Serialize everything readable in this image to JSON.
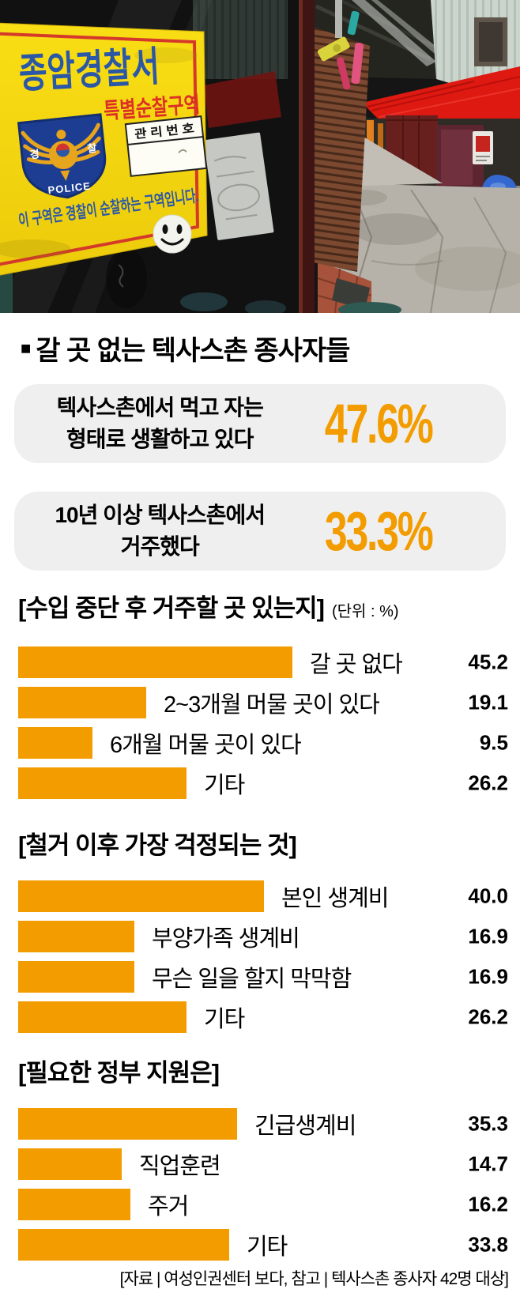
{
  "headline_bullet": "■",
  "headline": "갈 곳 없는 텍사스촌 종사자들",
  "stat_boxes": [
    {
      "line1": "텍사스촌에서 먹고 자는",
      "line2": "형태로 생활하고 있다",
      "value": "47.6%"
    },
    {
      "line1": "10년 이상 텍사스촌에서",
      "line2": "거주했다",
      "value": "33.3%"
    }
  ],
  "chart_data": [
    {
      "type": "bar",
      "orientation": "horizontal",
      "title": "[수입 중단 후 거주할 곳 있는지]",
      "unit_note": "(단위 : %)",
      "categories": [
        "갈 곳 없다",
        "2~3개월 머물 곳이 있다",
        "6개월 머물 곳이 있다",
        "기타"
      ],
      "values": [
        45.2,
        19.1,
        9.5,
        26.2
      ],
      "bar_color": "#f39c00",
      "value_position": "right-aligned column",
      "grid": false
    },
    {
      "type": "bar",
      "orientation": "horizontal",
      "title": "[철거 이후 가장 걱정되는 것]",
      "unit_note": "",
      "categories": [
        "본인 생계비",
        "부양가족 생계비",
        "무슨 일을 할지 막막함",
        "기타"
      ],
      "values": [
        40.0,
        16.9,
        16.9,
        26.2
      ],
      "bar_color": "#f39c00",
      "value_position": "right-aligned column",
      "grid": false
    },
    {
      "type": "bar",
      "orientation": "horizontal",
      "title": "[필요한 정부 지원은]",
      "unit_note": "",
      "categories": [
        "긴급생계비",
        "직업훈련",
        "주거",
        "기타"
      ],
      "values": [
        35.3,
        14.7,
        16.2,
        33.8
      ],
      "bar_color": "#f39c00",
      "value_position": "right-aligned column",
      "grid": false
    }
  ],
  "source": "[자료 | 여성인권센터 보다, 참고 | 텍사스촌 종사자 42명 대상]",
  "photo": {
    "sign": {
      "line1": "종암경찰서",
      "line2": "특별순찰구역",
      "box_title": "관 리 번 호",
      "emblem_left": "경",
      "emblem_right": "찰",
      "emblem_bottom": "POLICE",
      "notice": "이 구역은 경찰이 순찰하는 구역입니다."
    }
  },
  "colors": {
    "accent_orange": "#f39c00",
    "stat_box_gray": "#efefef",
    "sign_yellow": "#f5d70e",
    "sign_blue": "#2b57a7",
    "sign_red": "#dd2f26",
    "emblem_blue": "#1c3d92",
    "emblem_gold": "#e7a41d",
    "awning_red": "#dd1912",
    "text_black": "#000000"
  }
}
